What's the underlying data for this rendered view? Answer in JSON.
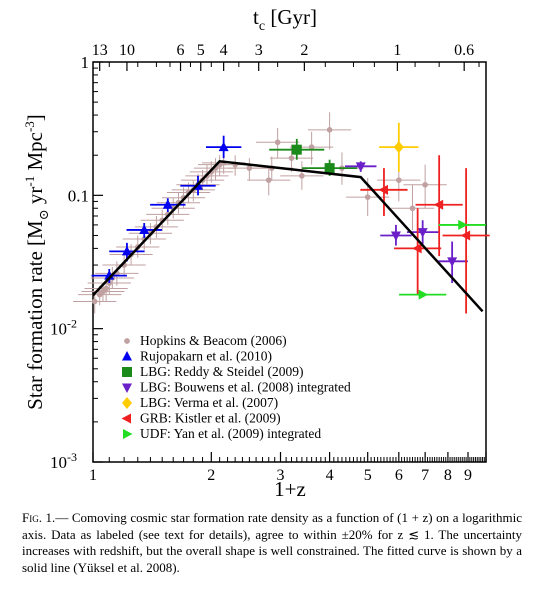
{
  "chart_data": {
    "type": "scatter",
    "x_scale": "log",
    "y_scale": "log",
    "xlim": [
      1,
      10
    ],
    "ylim": [
      0.001,
      1
    ],
    "xlabel": "1+z",
    "ylabel": "Star formation rate [M⊙ yr⁻¹ Mpc⁻³]",
    "top_axis_label": "t_c [Gyr]",
    "top_ticks": [
      {
        "label": "13",
        "z1": 1.04
      },
      {
        "label": "10",
        "z1": 1.22
      },
      {
        "label": "6",
        "z1": 1.67
      },
      {
        "label": "5",
        "z1": 1.88
      },
      {
        "label": "4",
        "z1": 2.15
      },
      {
        "label": "3",
        "z1": 2.64
      },
      {
        "label": "2",
        "z1": 3.45
      },
      {
        "label": "1",
        "z1": 5.95
      },
      {
        "label": "0.6",
        "z1": 8.8
      }
    ],
    "x_tick_labels": [
      {
        "label": "1",
        "v": 1
      },
      {
        "label": "2",
        "v": 2
      },
      {
        "label": "3",
        "v": 3
      },
      {
        "label": "4",
        "v": 4
      },
      {
        "label": "5",
        "v": 5
      },
      {
        "label": "6",
        "v": 6
      },
      {
        "label": "7",
        "v": 7
      },
      {
        "label": "8",
        "v": 8
      },
      {
        "label": "9",
        "v": 9
      }
    ],
    "y_tick_labels": [
      {
        "label": "1",
        "v": 1
      },
      {
        "label": "0.1",
        "v": 0.1
      },
      {
        "label": "10",
        "sup": "-2",
        "v": 0.01
      },
      {
        "label": "10",
        "sup": "-3",
        "v": 0.001
      }
    ],
    "fit_curve": {
      "name": "Yüksel et al. 2008 fit",
      "points": [
        [
          1,
          0.0178
        ],
        [
          2.1,
          0.18
        ],
        [
          4.8,
          0.137
        ],
        [
          9.8,
          0.0135
        ]
      ]
    },
    "series": [
      {
        "name": "Hopkins & Beacom (2006)",
        "marker": "circle",
        "color": "#c0a0a0",
        "points": [
          [
            1.01,
            0.016,
            0.013,
            0.019
          ],
          [
            1.04,
            0.018,
            0.015,
            0.021
          ],
          [
            1.06,
            0.019,
            0.016,
            0.022
          ],
          [
            1.08,
            0.02,
            0.016,
            0.024
          ],
          [
            1.1,
            0.022,
            0.018,
            0.027
          ],
          [
            1.12,
            0.024,
            0.02,
            0.029
          ],
          [
            1.15,
            0.026,
            0.021,
            0.032
          ],
          [
            1.2,
            0.03,
            0.025,
            0.036
          ],
          [
            1.25,
            0.036,
            0.03,
            0.043
          ],
          [
            1.3,
            0.041,
            0.034,
            0.05
          ],
          [
            1.35,
            0.047,
            0.039,
            0.056
          ],
          [
            1.4,
            0.052,
            0.043,
            0.062
          ],
          [
            1.45,
            0.058,
            0.048,
            0.07
          ],
          [
            1.5,
            0.065,
            0.054,
            0.078
          ],
          [
            1.55,
            0.072,
            0.06,
            0.086
          ],
          [
            1.6,
            0.08,
            0.067,
            0.096
          ],
          [
            1.65,
            0.088,
            0.073,
            0.105
          ],
          [
            1.7,
            0.096,
            0.08,
            0.115
          ],
          [
            1.75,
            0.105,
            0.088,
            0.125
          ],
          [
            1.8,
            0.11,
            0.09,
            0.13
          ],
          [
            1.85,
            0.12,
            0.1,
            0.145
          ],
          [
            1.9,
            0.13,
            0.11,
            0.155
          ],
          [
            1.95,
            0.14,
            0.12,
            0.17
          ],
          [
            2.0,
            0.15,
            0.125,
            0.18
          ],
          [
            2.05,
            0.16,
            0.13,
            0.19
          ],
          [
            2.1,
            0.17,
            0.14,
            0.2
          ],
          [
            2.15,
            0.175,
            0.145,
            0.21
          ],
          [
            2.3,
            0.17,
            0.14,
            0.2
          ],
          [
            2.5,
            0.16,
            0.13,
            0.19
          ],
          [
            2.8,
            0.13,
            0.1,
            0.165
          ],
          [
            2.85,
            0.16,
            0.13,
            0.195
          ],
          [
            2.95,
            0.25,
            0.19,
            0.32
          ],
          [
            3.2,
            0.19,
            0.15,
            0.24
          ],
          [
            3.4,
            0.14,
            0.11,
            0.18
          ],
          [
            3.6,
            0.23,
            0.17,
            0.3
          ],
          [
            4.0,
            0.31,
            0.22,
            0.42
          ],
          [
            4.3,
            0.16,
            0.12,
            0.21
          ],
          [
            5.0,
            0.097,
            0.07,
            0.135
          ],
          [
            6.0,
            0.13,
            0.09,
            0.18
          ],
          [
            6.5,
            0.08,
            0.055,
            0.12
          ],
          [
            7.0,
            0.12,
            0.08,
            0.17
          ]
        ]
      },
      {
        "name": "Rujopakarn et al. (2010)",
        "marker": "triangle-up",
        "color": "#0000ee",
        "points": [
          [
            1.1,
            0.025,
            0.022,
            0.028
          ],
          [
            1.22,
            0.038,
            0.032,
            0.044
          ],
          [
            1.35,
            0.055,
            0.048,
            0.062
          ],
          [
            1.55,
            0.085,
            0.075,
            0.095
          ],
          [
            1.85,
            0.118,
            0.1,
            0.14
          ],
          [
            2.15,
            0.23,
            0.19,
            0.28
          ]
        ]
      },
      {
        "name": "LBG: Reddy & Steidel (2009)",
        "marker": "square",
        "color": "#1a8a1a",
        "points": [
          [
            3.3,
            0.22,
            0.185,
            0.265
          ],
          [
            4.0,
            0.16,
            0.14,
            0.185
          ]
        ]
      },
      {
        "name": "LBG: Bouwens et al. (2008) integrated",
        "marker": "triangle-down",
        "color": "#6a1fc8",
        "points": [
          [
            4.8,
            0.165,
            0.15,
            0.18
          ],
          [
            5.9,
            0.05,
            0.042,
            0.06
          ],
          [
            6.9,
            0.053,
            0.043,
            0.065
          ],
          [
            8.2,
            0.032,
            0.022,
            0.045
          ]
        ]
      },
      {
        "name": "LBG: Verma et al. (2007)",
        "marker": "diamond",
        "color": "#ffcc00",
        "points": [
          [
            6.0,
            0.23,
            0.15,
            0.35
          ]
        ]
      },
      {
        "name": "GRB: Kistler et al. (2009)",
        "marker": "triangle-left",
        "color": "#ee2020",
        "points": [
          [
            5.5,
            0.11,
            0.07,
            0.16
          ],
          [
            6.7,
            0.04,
            0.018,
            0.08
          ],
          [
            7.6,
            0.085,
            0.035,
            0.2
          ],
          [
            8.9,
            0.05,
            0.013,
            0.16
          ]
        ]
      },
      {
        "name": "UDF: Yan et al. (2009) integrated",
        "marker": "triangle-right",
        "color": "#22dd22",
        "points": [
          [
            6.9,
            0.018,
            0.018,
            0.018
          ],
          [
            8.7,
            0.06,
            0.06,
            0.06
          ]
        ]
      }
    ],
    "legend_placement": "lower-left"
  },
  "caption": {
    "label": "Fig. 1.",
    "text": "— Comoving cosmic star formation rate density as a function of (1 + z) on a logarithmic axis. Data as labeled (see text for details), agree to within ±20% for z ≲ 1. The uncertainty increases with redshift, but the overall shape is well constrained. The fitted curve is shown by a solid line (Yüksel et al. 2008)."
  }
}
